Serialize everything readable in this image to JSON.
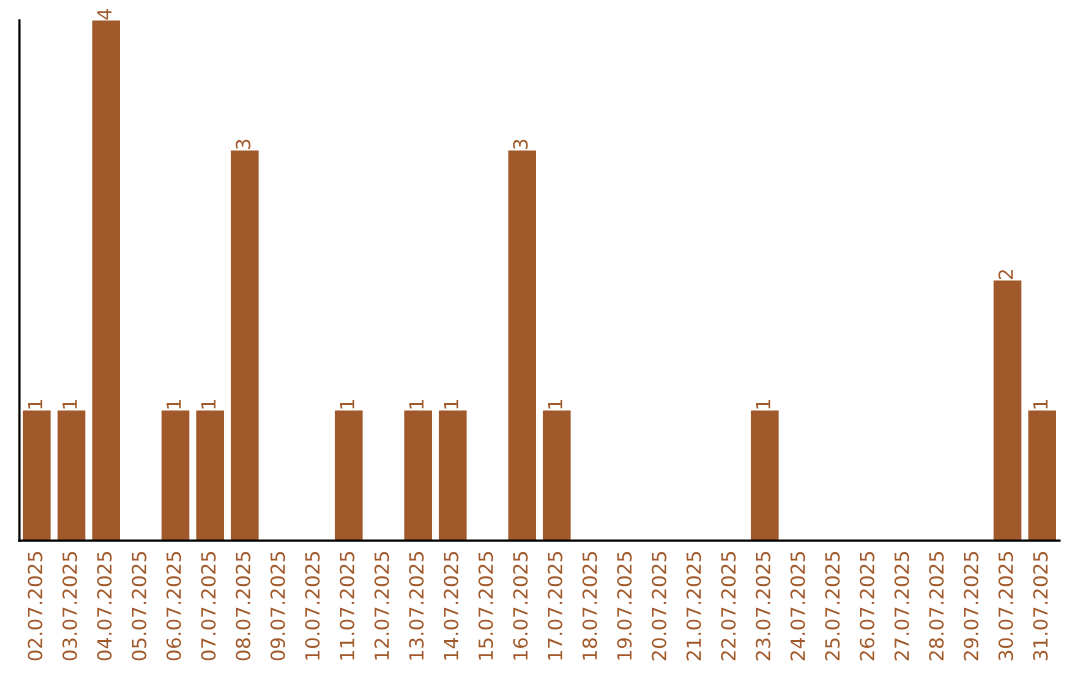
{
  "chart_data": {
    "type": "bar",
    "categories": [
      "02.07.2025",
      "03.07.2025",
      "04.07.2025",
      "05.07.2025",
      "06.07.2025",
      "07.07.2025",
      "08.07.2025",
      "09.07.2025",
      "10.07.2025",
      "11.07.2025",
      "12.07.2025",
      "13.07.2025",
      "14.07.2025",
      "15.07.2025",
      "16.07.2025",
      "17.07.2025",
      "18.07.2025",
      "19.07.2025",
      "20.07.2025",
      "21.07.2025",
      "22.07.2025",
      "23.07.2025",
      "24.07.2025",
      "25.07.2025",
      "26.07.2025",
      "27.07.2025",
      "28.07.2025",
      "29.07.2025",
      "30.07.2025",
      "31.07.2025"
    ],
    "values": [
      1,
      1,
      4,
      0,
      1,
      1,
      3,
      0,
      0,
      1,
      0,
      1,
      1,
      0,
      3,
      1,
      0,
      0,
      0,
      0,
      0,
      1,
      0,
      0,
      0,
      0,
      0,
      0,
      2,
      1
    ],
    "value_labels": [
      "1",
      "1",
      "4",
      null,
      "1",
      "1",
      "3",
      null,
      null,
      "1",
      null,
      "1",
      "1",
      null,
      "3",
      "1",
      null,
      null,
      null,
      null,
      null,
      "1",
      null,
      null,
      null,
      null,
      null,
      null,
      "2",
      "1"
    ],
    "color": "#a0592a",
    "tick_labels": "x",
    "grid": false,
    "legend": false
  }
}
